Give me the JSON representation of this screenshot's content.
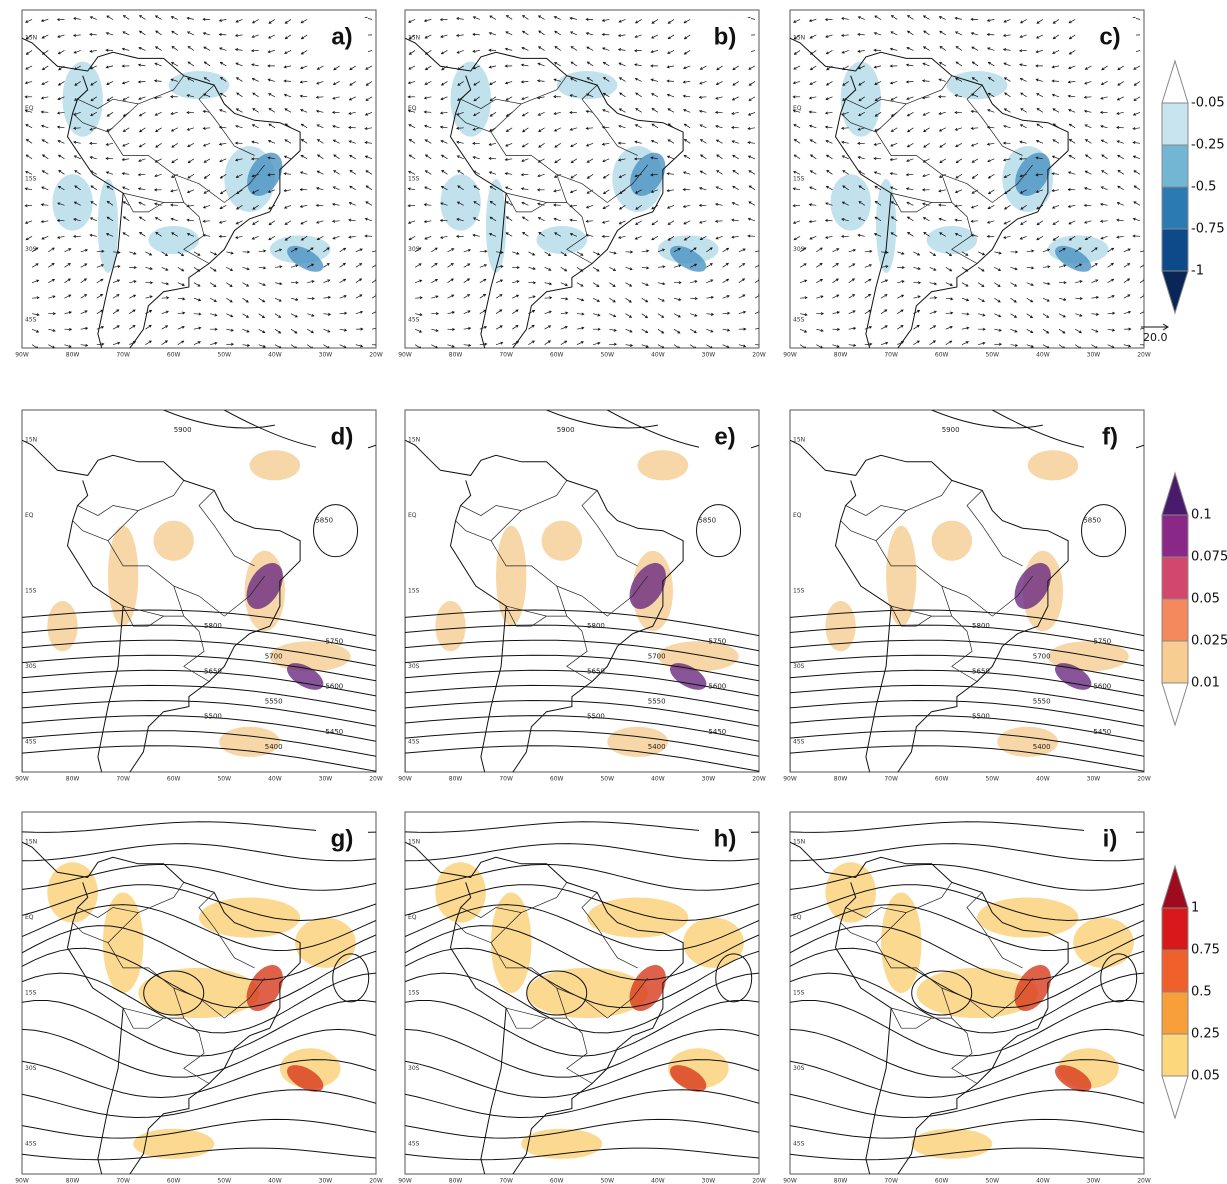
{
  "panel_labels": [
    "a)",
    "b)",
    "c)",
    "d)",
    "e)",
    "f)",
    "g)",
    "h)",
    "i)"
  ],
  "lon_ticks": [
    "90W",
    "80W",
    "70W",
    "60W",
    "50W",
    "40W",
    "30W",
    "20W"
  ],
  "lat_ticks": [
    "15N",
    "EQ",
    "15S",
    "30S",
    "45S"
  ],
  "contour_labels": [
    "5900",
    "5850",
    "5800",
    "5750",
    "5700",
    "5650",
    "5600",
    "5550",
    "5500",
    "5450",
    "5400"
  ],
  "colorbars": [
    {
      "labels": [
        "-0.05",
        "-0.25",
        "-0.5",
        "-0.75",
        "-1"
      ],
      "colors": [
        "#ffffff",
        "#c7e4ef",
        "#72b6d4",
        "#2b7bb2",
        "#0e4a8a",
        "#0a2656"
      ],
      "vector_ref": "20.0"
    },
    {
      "labels": [
        "0.1",
        "0.075",
        "0.05",
        "0.025",
        "0.01"
      ],
      "colors": [
        "#4a1a6c",
        "#8a2888",
        "#d3476c",
        "#f3895c",
        "#f7cd92",
        "#ffffff"
      ]
    },
    {
      "labels": [
        "1",
        "0.75",
        "0.5",
        "0.25",
        "0.05"
      ],
      "colors": [
        "#9e0a1e",
        "#d7191c",
        "#f0602a",
        "#f99f3a",
        "#fdd77c",
        "#ffffff"
      ]
    }
  ]
}
